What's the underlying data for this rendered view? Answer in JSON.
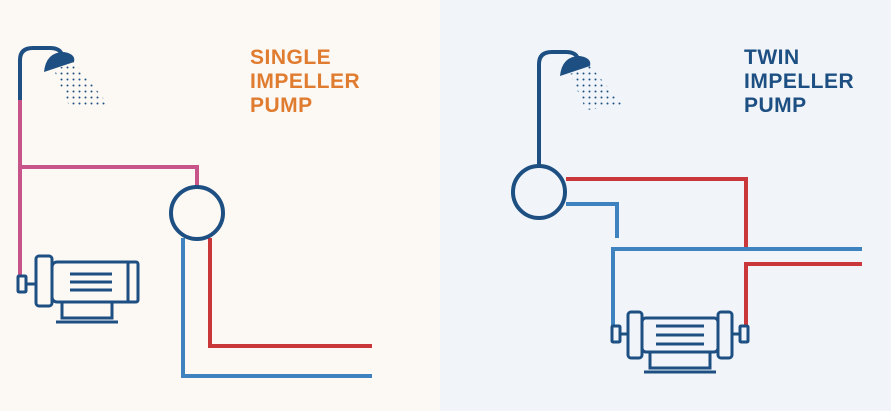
{
  "left_panel": {
    "title_lines": [
      "SINGLE",
      "IMPELLER",
      "PUMP"
    ]
  },
  "right_panel": {
    "title_lines": [
      "TWIN",
      "IMPELLER",
      "PUMP"
    ]
  },
  "colors": {
    "left_background": "#fcf8f4",
    "right_background": "#f1f5f9",
    "left_title": "#e07c30",
    "right_title": "#1d4f82",
    "outline_navy": "#1d4f82",
    "cold_water_blue": "#3f82c0",
    "hot_water_red": "#c9373a",
    "mixed_pink": "#c8558a"
  },
  "icons": [
    "shower-icon",
    "pump-icon",
    "motor-icon"
  ]
}
